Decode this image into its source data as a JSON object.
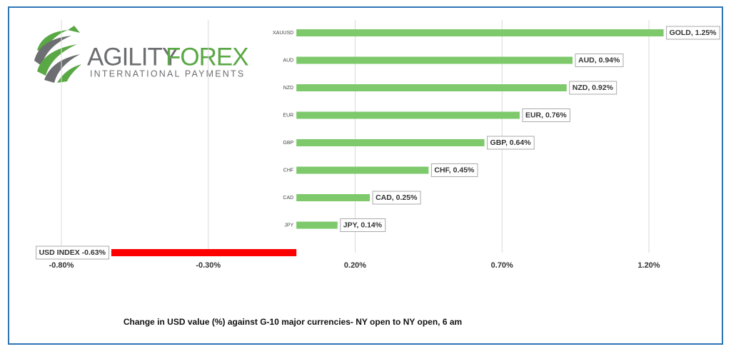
{
  "logo": {
    "brand_a": "AGILITY",
    "brand_b": "FOREX",
    "tagline": "INTERNATIONAL PAYMENTS"
  },
  "chart_data": {
    "type": "hbar",
    "caption": "Change in  USD value (%)  against  G-10 major currencies-  NY open to  NY open, 6 am",
    "categories": [
      "XAUUSD",
      "AUD",
      "NZD",
      "EUR",
      "GBP",
      "CHF",
      "CAD",
      "JPY",
      null
    ],
    "values": [
      1.25,
      0.94,
      0.92,
      0.76,
      0.64,
      0.45,
      0.25,
      0.14,
      -0.63
    ],
    "value_labels": [
      "GOLD, 1.25%",
      "AUD, 0.94%",
      "NZD, 0.92%",
      "EUR, 0.76%",
      "GBP, 0.64%",
      "CHF, 0.45%",
      "CAD, 0.25%",
      "JPY, 0.14%",
      "USD INDEX -0.63%"
    ],
    "colors": [
      "#7dc96b",
      "#7dc96b",
      "#7dc96b",
      "#7dc96b",
      "#7dc96b",
      "#7dc96b",
      "#7dc96b",
      "#7dc96b",
      "#ff0000"
    ],
    "xlim": [
      -0.8,
      1.2
    ],
    "xticks": [
      {
        "value": -0.8,
        "label": "-0.80%"
      },
      {
        "value": -0.3,
        "label": "-0.30%"
      },
      {
        "value": 0.2,
        "label": "0.20%"
      },
      {
        "value": 0.7,
        "label": "0.70%"
      },
      {
        "value": 1.2,
        "label": "1.20%"
      }
    ],
    "grid": true
  }
}
